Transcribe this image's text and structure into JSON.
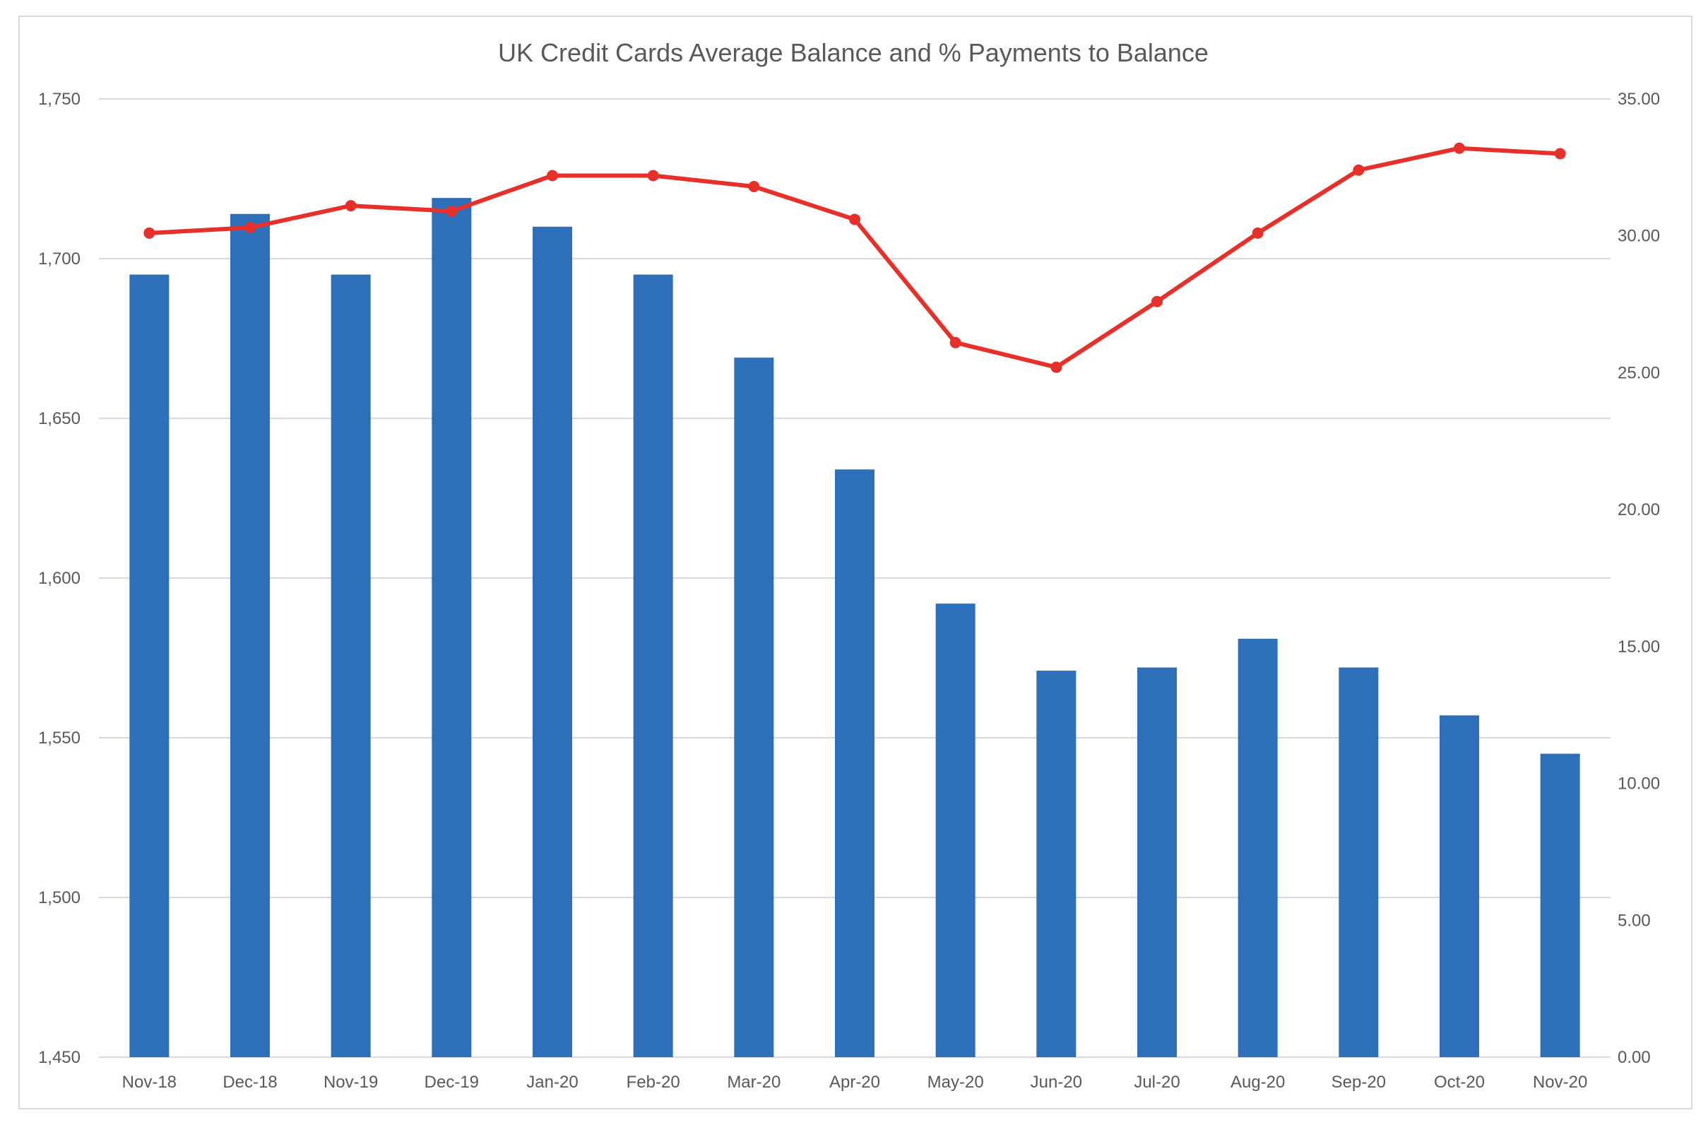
{
  "chart_data": {
    "type": "bar",
    "title": "UK Credit Cards Average Balance and % Payments to Balance",
    "categories": [
      "Nov-18",
      "Dec-18",
      "Nov-19",
      "Dec-19",
      "Jan-20",
      "Feb-20",
      "Mar-20",
      "Apr-20",
      "May-20",
      "Jun-20",
      "Jul-20",
      "Aug-20",
      "Sep-20",
      "Oct-20",
      "Nov-20"
    ],
    "series": [
      {
        "type": "bar",
        "axis": "left",
        "color": "#2e6fb9",
        "values": [
          1695,
          1714,
          1695,
          1719,
          1710,
          1695,
          1669,
          1634,
          1592,
          1571,
          1572,
          1581,
          1572,
          1557,
          1545
        ]
      },
      {
        "type": "line",
        "axis": "right",
        "color": "#e8302a",
        "values": [
          30.1,
          30.3,
          31.1,
          30.9,
          32.2,
          32.2,
          31.8,
          30.6,
          26.1,
          25.2,
          27.6,
          30.1,
          32.4,
          33.2,
          33.0
        ]
      }
    ],
    "y_left": {
      "ylim": [
        1450,
        1750
      ],
      "ticks": [
        1450,
        1500,
        1550,
        1600,
        1650,
        1700,
        1750
      ],
      "tick_labels": [
        "1,450",
        "1,500",
        "1,550",
        "1,600",
        "1,650",
        "1,700",
        "1,750"
      ]
    },
    "y_right": {
      "ylim": [
        0,
        35
      ],
      "ticks": [
        0,
        5,
        10,
        15,
        20,
        25,
        30,
        35
      ],
      "tick_labels": [
        "0.00",
        "5.00",
        "10.00",
        "15.00",
        "20.00",
        "25.00",
        "30.00",
        "35.00"
      ]
    },
    "grid": true,
    "legend": "none"
  }
}
